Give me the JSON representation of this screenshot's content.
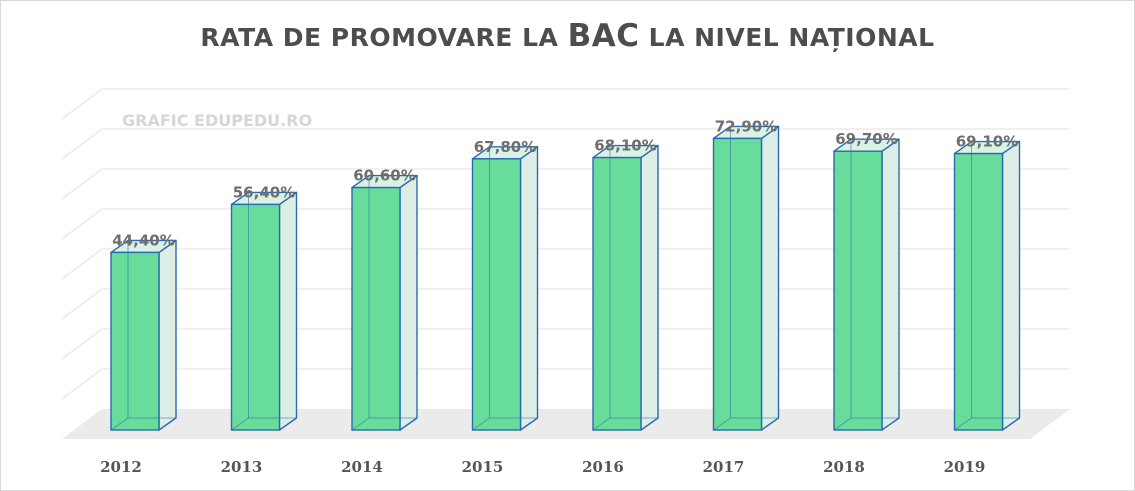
{
  "chart_data": {
    "type": "bar",
    "title": {
      "part1": "RATA DE PROMOVARE LA ",
      "part2": "BAC",
      "part3": " LA NIVEL NAȚIONAL"
    },
    "watermark": "GRAFIC EDUPEDU.RO",
    "categories": [
      "2012",
      "2013",
      "2014",
      "2015",
      "2016",
      "2017",
      "2018",
      "2019"
    ],
    "values": [
      44.4,
      56.4,
      60.6,
      67.8,
      68.1,
      72.9,
      69.7,
      69.1
    ],
    "data_labels": [
      "44,40%",
      "56,40%",
      "60,60%",
      "67,80%",
      "68,10%",
      "72,90%",
      "69,70%",
      "69,10%"
    ],
    "ylim": [
      0,
      80
    ],
    "xlabel": "",
    "ylabel": "",
    "grid": true,
    "legend": "none",
    "style": "3d-column",
    "colors": {
      "bar_front": "#68dc9a",
      "bar_side": "#ddeee6",
      "bar_top": "#d8f2e4",
      "bar_edge": "#2a6ab0",
      "gridline": "#e6e6e6",
      "floor": "#ebebeb"
    }
  }
}
